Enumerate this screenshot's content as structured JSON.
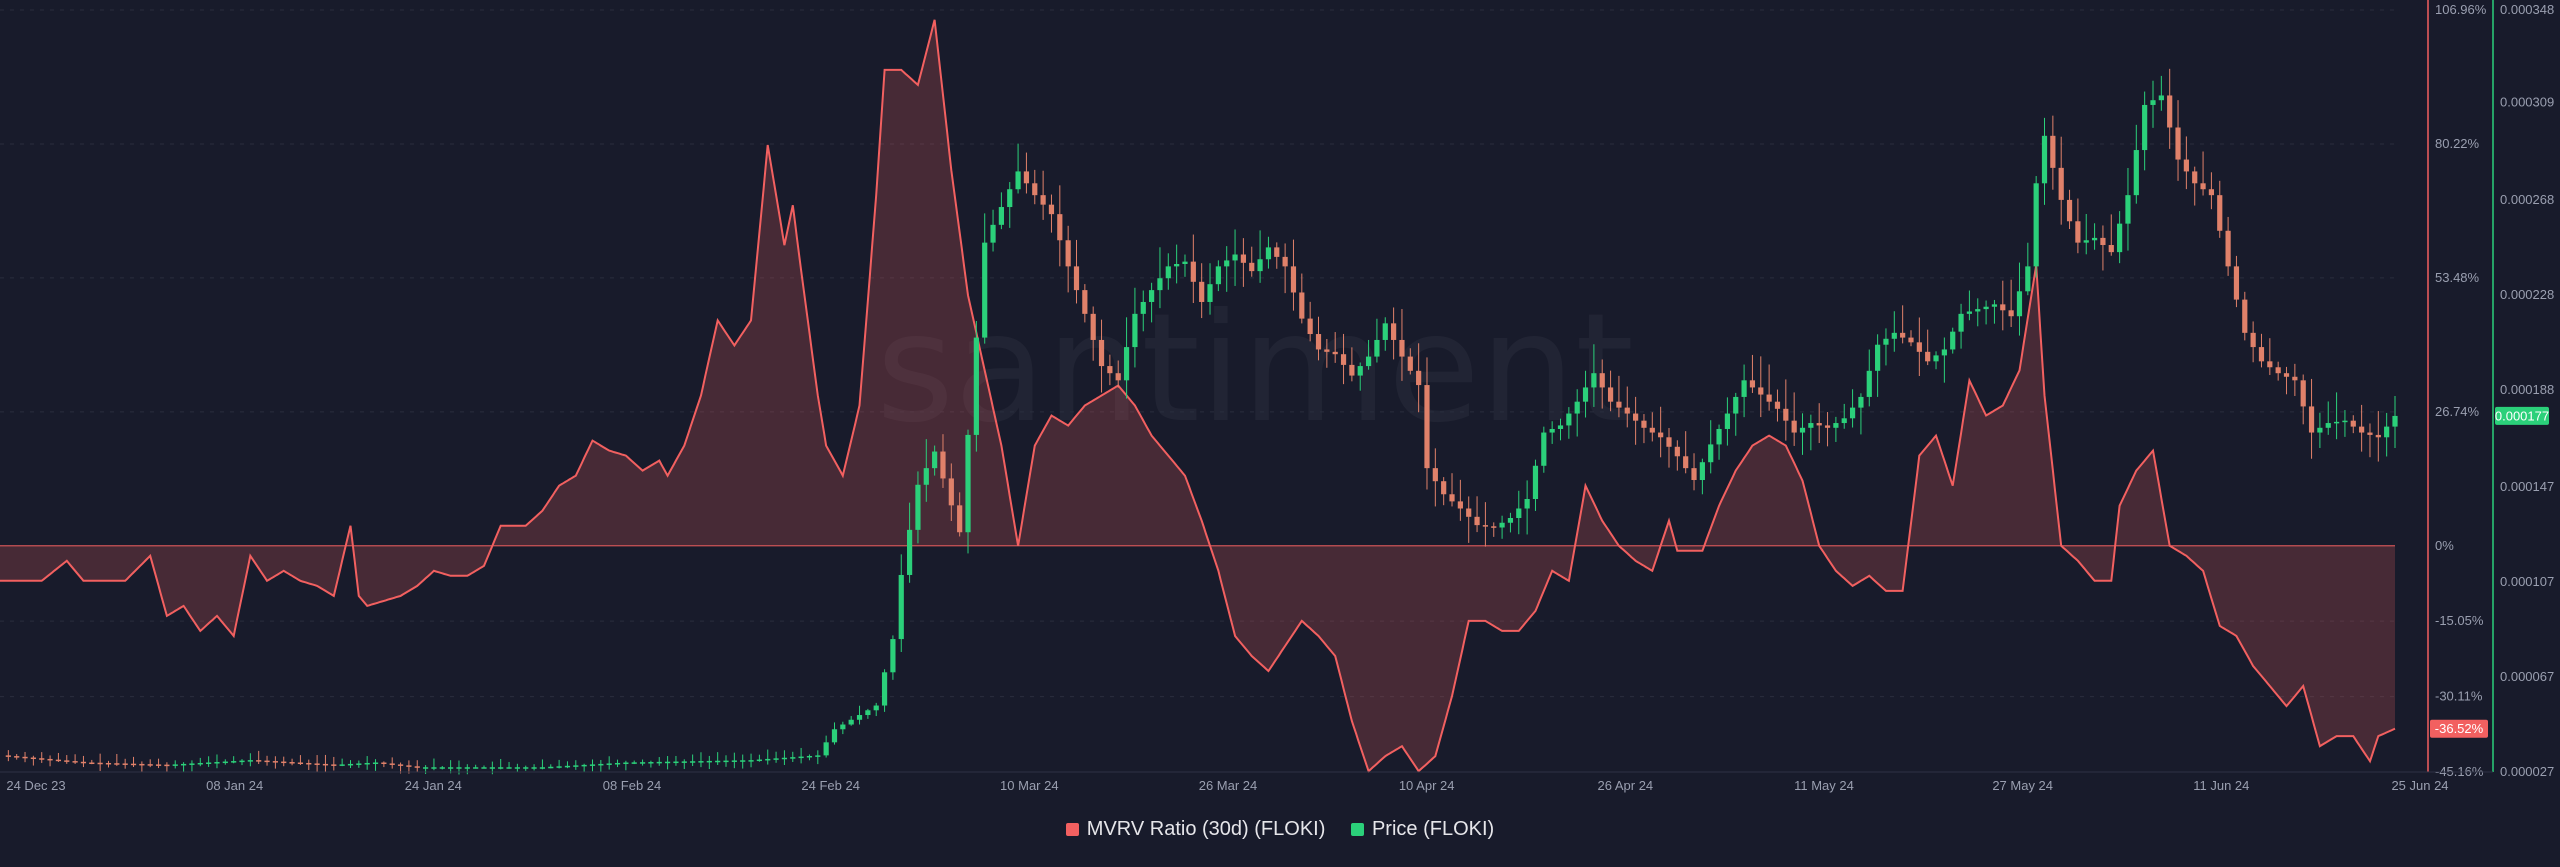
{
  "watermark": "santiment",
  "colors": {
    "background": "#181b2b",
    "mvrv": "#f26060",
    "mvrv_fill": "#f26060",
    "up": "#2bd07a",
    "down": "#e0816a",
    "grid": "#2a2e3e"
  },
  "legend": {
    "mvrv": "MVRV Ratio (30d) (FLOKI)",
    "price": "Price (FLOKI)"
  },
  "badges": {
    "price_last": "0.000177",
    "mvrv_last": "-36.52%"
  },
  "chart_data": {
    "type": "line",
    "x_tick_labels": [
      "24 Dec 23",
      "08 Jan 24",
      "24 Jan 24",
      "08 Feb 24",
      "24 Feb 24",
      "10 Mar 24",
      "26 Mar 24",
      "10 Apr 24",
      "26 Apr 24",
      "11 May 24",
      "27 May 24",
      "11 Jun 24",
      "25 Jun 24"
    ],
    "mvrv_axis": {
      "tick_labels": [
        "106.96%",
        "80.22%",
        "53.48%",
        "26.74%",
        "0%",
        "-15.05%",
        "-30.11%",
        "-45.16%"
      ],
      "ticks": [
        106.96,
        80.22,
        53.48,
        26.74,
        0,
        -15.05,
        -30.11,
        -45.16
      ],
      "range": [
        -45.16,
        106.96
      ]
    },
    "price_axis": {
      "tick_labels": [
        "0.000348",
        "0.000309",
        "0.000268",
        "0.000228",
        "0.000188",
        "0.000147",
        "0.000107",
        "0.000067",
        "0.000027"
      ],
      "ticks": [
        0.000348,
        0.000309,
        0.000268,
        0.000228,
        0.000188,
        0.000147,
        0.000107,
        6.7e-05,
        2.7e-05
      ],
      "range": [
        2.7e-05,
        0.000348
      ]
    },
    "series": [
      {
        "name": "MVRV Ratio (30d) (FLOKI)",
        "type": "area",
        "step": 0.5,
        "anchors": [
          [
            0,
            -7
          ],
          [
            10,
            -7
          ],
          [
            16,
            -3
          ],
          [
            20,
            -7
          ],
          [
            26,
            -7
          ],
          [
            30,
            -7
          ],
          [
            36,
            -2
          ],
          [
            40,
            -14
          ],
          [
            44,
            -12
          ],
          [
            48,
            -17
          ],
          [
            52,
            -14
          ],
          [
            56,
            -18
          ],
          [
            60,
            -2
          ],
          [
            64,
            -7
          ],
          [
            68,
            -5
          ],
          [
            72,
            -7
          ],
          [
            76,
            -8
          ],
          [
            80,
            -10
          ],
          [
            84,
            4
          ],
          [
            86,
            -10
          ],
          [
            88,
            -12
          ],
          [
            92,
            -11
          ],
          [
            96,
            -10
          ],
          [
            100,
            -8
          ],
          [
            104,
            -5
          ],
          [
            108,
            -6
          ],
          [
            112,
            -6
          ],
          [
            116,
            -4
          ],
          [
            120,
            4
          ],
          [
            126,
            4
          ],
          [
            130,
            7
          ],
          [
            134,
            12
          ],
          [
            138,
            14
          ],
          [
            142,
            21
          ],
          [
            146,
            19
          ],
          [
            150,
            18
          ],
          [
            154,
            15
          ],
          [
            158,
            17
          ],
          [
            160,
            14
          ],
          [
            164,
            20
          ],
          [
            168,
            30
          ],
          [
            172,
            45
          ],
          [
            176,
            40
          ],
          [
            180,
            45
          ],
          [
            184,
            80
          ],
          [
            188,
            60
          ],
          [
            190,
            68
          ],
          [
            192,
            55
          ],
          [
            196,
            30
          ],
          [
            198,
            20
          ],
          [
            202,
            14
          ],
          [
            206,
            28
          ],
          [
            210,
            70
          ],
          [
            212,
            95
          ],
          [
            216,
            95
          ],
          [
            220,
            92
          ],
          [
            224,
            105
          ],
          [
            228,
            75
          ],
          [
            232,
            50
          ],
          [
            236,
            35
          ],
          [
            240,
            20
          ],
          [
            244,
            0
          ],
          [
            248,
            20
          ],
          [
            252,
            26
          ],
          [
            256,
            24
          ],
          [
            260,
            28
          ],
          [
            264,
            30
          ],
          [
            268,
            32
          ],
          [
            272,
            28
          ],
          [
            276,
            22
          ],
          [
            280,
            18
          ],
          [
            284,
            14
          ],
          [
            288,
            5
          ],
          [
            292,
            -5
          ],
          [
            296,
            -18
          ],
          [
            300,
            -22
          ],
          [
            304,
            -25
          ],
          [
            308,
            -20
          ],
          [
            312,
            -15
          ],
          [
            316,
            -18
          ],
          [
            320,
            -22
          ],
          [
            324,
            -35
          ],
          [
            328,
            -45
          ],
          [
            332,
            -42
          ],
          [
            336,
            -40
          ],
          [
            340,
            -45
          ],
          [
            344,
            -42
          ],
          [
            348,
            -30
          ],
          [
            352,
            -15
          ],
          [
            356,
            -15
          ],
          [
            360,
            -17
          ],
          [
            364,
            -17
          ],
          [
            368,
            -13
          ],
          [
            372,
            -5
          ],
          [
            376,
            -7
          ],
          [
            380,
            12
          ],
          [
            384,
            5
          ],
          [
            388,
            0
          ],
          [
            392,
            -3
          ],
          [
            396,
            -5
          ],
          [
            400,
            5
          ],
          [
            402,
            -1
          ],
          [
            404,
            -1
          ],
          [
            408,
            -1
          ],
          [
            412,
            8
          ],
          [
            416,
            15
          ],
          [
            420,
            20
          ],
          [
            424,
            22
          ],
          [
            428,
            20
          ],
          [
            432,
            13
          ],
          [
            436,
            0
          ],
          [
            440,
            -5
          ],
          [
            444,
            -8
          ],
          [
            448,
            -6
          ],
          [
            452,
            -9
          ],
          [
            456,
            -9
          ],
          [
            460,
            18
          ],
          [
            464,
            22
          ],
          [
            468,
            12
          ],
          [
            472,
            33
          ],
          [
            476,
            26
          ],
          [
            480,
            28
          ],
          [
            484,
            35
          ],
          [
            488,
            56
          ],
          [
            490,
            30
          ],
          [
            494,
            0
          ],
          [
            498,
            -3
          ],
          [
            502,
            -7
          ],
          [
            506,
            -7
          ],
          [
            508,
            8
          ],
          [
            512,
            15
          ],
          [
            516,
            19
          ],
          [
            520,
            0
          ],
          [
            524,
            -2
          ],
          [
            528,
            -5
          ],
          [
            532,
            -16
          ],
          [
            536,
            -18
          ],
          [
            540,
            -24
          ],
          [
            544,
            -28
          ],
          [
            548,
            -32
          ],
          [
            552,
            -28
          ],
          [
            556,
            -40
          ],
          [
            560,
            -38
          ],
          [
            564,
            -38
          ],
          [
            568,
            -43
          ],
          [
            570,
            -38
          ],
          [
            574,
            -36.52
          ]
        ]
      },
      {
        "name": "Price (FLOKI)",
        "type": "candlestick",
        "step": 2,
        "anchors": [
          [
            0,
            3.4e-05
          ],
          [
            20,
            3.1e-05
          ],
          [
            40,
            3e-05
          ],
          [
            60,
            3.2e-05
          ],
          [
            80,
            3e-05
          ],
          [
            90,
            3.1e-05
          ],
          [
            100,
            2.9e-05
          ],
          [
            130,
            2.9e-05
          ],
          [
            150,
            3.1e-05
          ],
          [
            180,
            3.2e-05
          ],
          [
            196,
            3.4e-05
          ],
          [
            200,
            4.5e-05
          ],
          [
            210,
            5.5e-05
          ],
          [
            214,
            8.3e-05
          ],
          [
            216,
            0.00011
          ],
          [
            220,
            0.000148
          ],
          [
            224,
            0.000162
          ],
          [
            230,
            0.000128
          ],
          [
            234,
            0.00021
          ],
          [
            236,
            0.00025
          ],
          [
            240,
            0.000265
          ],
          [
            244,
            0.00028
          ],
          [
            248,
            0.00027
          ],
          [
            252,
            0.000262
          ],
          [
            256,
            0.00024
          ],
          [
            260,
            0.00022
          ],
          [
            264,
            0.000198
          ],
          [
            268,
            0.000192
          ],
          [
            272,
            0.00022
          ],
          [
            276,
            0.00023
          ],
          [
            280,
            0.00024
          ],
          [
            284,
            0.000242
          ],
          [
            288,
            0.000225
          ],
          [
            292,
            0.00024
          ],
          [
            296,
            0.000245
          ],
          [
            300,
            0.000238
          ],
          [
            304,
            0.000248
          ],
          [
            308,
            0.00024
          ],
          [
            312,
            0.000218
          ],
          [
            316,
            0.000205
          ],
          [
            320,
            0.000203
          ],
          [
            324,
            0.000194
          ],
          [
            328,
            0.000202
          ],
          [
            332,
            0.000216
          ],
          [
            336,
            0.000202
          ],
          [
            340,
            0.00019
          ],
          [
            342,
            0.000155
          ],
          [
            346,
            0.000144
          ],
          [
            350,
            0.000138
          ],
          [
            354,
            0.000131
          ],
          [
            358,
            0.00013
          ],
          [
            362,
            0.000134
          ],
          [
            366,
            0.000142
          ],
          [
            370,
            0.00017
          ],
          [
            374,
            0.000173
          ],
          [
            378,
            0.000183
          ],
          [
            382,
            0.000195
          ],
          [
            386,
            0.000183
          ],
          [
            390,
            0.000178
          ],
          [
            394,
            0.000172
          ],
          [
            398,
            0.000168
          ],
          [
            402,
            0.00016
          ],
          [
            406,
            0.00015
          ],
          [
            410,
            0.000165
          ],
          [
            414,
            0.000178
          ],
          [
            418,
            0.000192
          ],
          [
            422,
            0.000186
          ],
          [
            426,
            0.00018
          ],
          [
            430,
            0.00017
          ],
          [
            434,
            0.000174
          ],
          [
            438,
            0.000172
          ],
          [
            442,
            0.000176
          ],
          [
            446,
            0.000185
          ],
          [
            450,
            0.000207
          ],
          [
            454,
            0.000212
          ],
          [
            458,
            0.000208
          ],
          [
            462,
            0.0002
          ],
          [
            466,
            0.000205
          ],
          [
            470,
            0.00022
          ],
          [
            474,
            0.000222
          ],
          [
            478,
            0.000224
          ],
          [
            482,
            0.000219
          ],
          [
            486,
            0.00024
          ],
          [
            488,
            0.000275
          ],
          [
            490,
            0.000295
          ],
          [
            494,
            0.000268
          ],
          [
            498,
            0.00025
          ],
          [
            502,
            0.000252
          ],
          [
            506,
            0.000246
          ],
          [
            510,
            0.00027
          ],
          [
            514,
            0.000308
          ],
          [
            518,
            0.000312
          ],
          [
            522,
            0.000285
          ],
          [
            526,
            0.000275
          ],
          [
            530,
            0.00027
          ],
          [
            534,
            0.00024
          ],
          [
            538,
            0.000212
          ],
          [
            542,
            0.0002
          ],
          [
            546,
            0.000195
          ],
          [
            550,
            0.000192
          ],
          [
            554,
            0.00017
          ],
          [
            558,
            0.000174
          ],
          [
            562,
            0.000175
          ],
          [
            566,
            0.00017
          ],
          [
            570,
            0.000168
          ],
          [
            574,
            0.000177
          ]
        ]
      }
    ]
  }
}
